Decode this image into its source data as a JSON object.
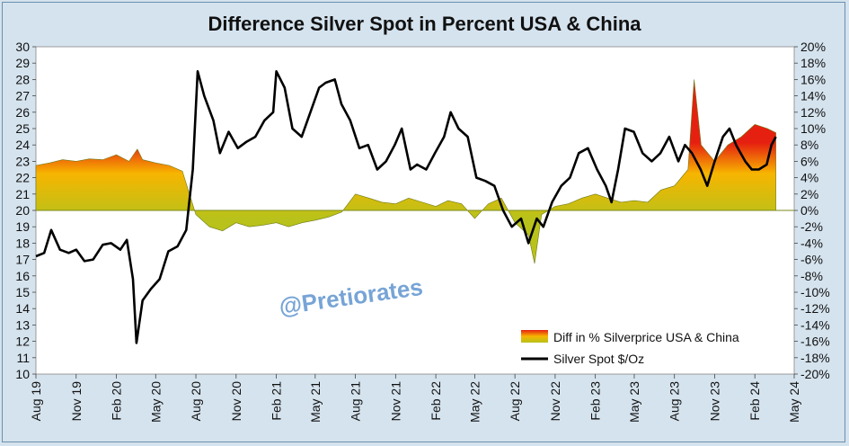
{
  "chart_data": {
    "type": "line",
    "title": "Difference Silver Spot in Percent USA & China",
    "left_axis": {
      "ylim": [
        10,
        30
      ],
      "ticks": [
        10,
        11,
        12,
        13,
        14,
        15,
        16,
        17,
        18,
        19,
        20,
        21,
        22,
        23,
        24,
        25,
        26,
        27,
        28,
        29,
        30
      ]
    },
    "right_axis": {
      "ylim": [
        -20,
        20
      ],
      "ticks": [
        "-20%",
        "-18%",
        "-16%",
        "-14%",
        "-12%",
        "-10%",
        "-8%",
        "-6%",
        "-4%",
        "-2%",
        "0%",
        "2%",
        "4%",
        "6%",
        "8%",
        "10%",
        "12%",
        "14%",
        "16%",
        "18%",
        "20%"
      ]
    },
    "x_axis": {
      "range": [
        "2019-08-01",
        "2024-05-01"
      ],
      "ticks": [
        "Aug 19",
        "Nov 19",
        "Feb 20",
        "May 20",
        "Aug 20",
        "Nov 20",
        "Feb 21",
        "May 21",
        "Aug 21",
        "Nov 21",
        "Feb 22",
        "May 22",
        "Aug 22",
        "Nov 22",
        "Feb 23",
        "May 23",
        "Aug 23",
        "Nov 23",
        "Feb 24",
        "May 24"
      ]
    },
    "grid": false,
    "legend_position": "bottom-right",
    "watermark": "@Pretiorates",
    "series": [
      {
        "name": "Diff in % Silverprice USA & China",
        "axis": "right",
        "style": "area",
        "unit": "%",
        "x": [
          "2019-08-01",
          "2019-09-01",
          "2019-10-01",
          "2019-11-01",
          "2019-12-01",
          "2020-01-01",
          "2020-02-01",
          "2020-03-01",
          "2020-03-20",
          "2020-04-01",
          "2020-05-01",
          "2020-06-01",
          "2020-07-01",
          "2020-08-01",
          "2020-09-01",
          "2020-10-01",
          "2020-11-01",
          "2020-12-01",
          "2021-01-01",
          "2021-02-01",
          "2021-03-01",
          "2021-04-01",
          "2021-05-01",
          "2021-06-01",
          "2021-07-01",
          "2021-08-01",
          "2021-09-01",
          "2021-10-01",
          "2021-11-01",
          "2021-12-01",
          "2022-01-01",
          "2022-02-01",
          "2022-03-01",
          "2022-04-01",
          "2022-05-01",
          "2022-06-01",
          "2022-07-01",
          "2022-08-01",
          "2022-09-01",
          "2022-09-15",
          "2022-10-01",
          "2022-11-01",
          "2022-12-01",
          "2023-01-01",
          "2023-02-01",
          "2023-03-01",
          "2023-04-01",
          "2023-05-01",
          "2023-06-01",
          "2023-07-01",
          "2023-08-01",
          "2023-09-01",
          "2023-09-15",
          "2023-10-01",
          "2023-11-01",
          "2023-12-01",
          "2024-01-01",
          "2024-02-01",
          "2024-03-01",
          "2024-03-20"
        ],
        "values": [
          5.5,
          5.8,
          6.2,
          6.0,
          6.3,
          6.2,
          6.8,
          6.0,
          7.5,
          6.2,
          5.8,
          5.5,
          4.8,
          -0.5,
          -2.0,
          -2.5,
          -1.5,
          -2.0,
          -1.8,
          -1.5,
          -2.0,
          -1.5,
          -1.2,
          -0.8,
          -0.2,
          2.0,
          1.5,
          1.0,
          0.8,
          1.5,
          1.0,
          0.5,
          1.2,
          0.8,
          -1.0,
          0.8,
          1.5,
          -1.5,
          -3.0,
          -6.5,
          -0.5,
          0.5,
          0.8,
          1.5,
          2.0,
          1.5,
          1.0,
          1.2,
          1.0,
          2.5,
          3.0,
          5.0,
          16.0,
          8.0,
          6.0,
          8.0,
          9.0,
          10.5,
          10.0,
          9.5
        ]
      },
      {
        "name": "Silver Spot  $/Oz",
        "axis": "left",
        "style": "line",
        "unit": "$/Oz",
        "x": [
          "2019-08-01",
          "2019-08-20",
          "2019-09-05",
          "2019-09-25",
          "2019-10-15",
          "2019-11-01",
          "2019-11-20",
          "2019-12-10",
          "2020-01-01",
          "2020-01-20",
          "2020-02-10",
          "2020-02-25",
          "2020-03-10",
          "2020-03-18",
          "2020-04-01",
          "2020-04-20",
          "2020-05-10",
          "2020-05-30",
          "2020-06-20",
          "2020-07-10",
          "2020-07-25",
          "2020-08-05",
          "2020-08-20",
          "2020-09-10",
          "2020-09-25",
          "2020-10-15",
          "2020-11-05",
          "2020-11-25",
          "2020-12-15",
          "2021-01-05",
          "2021-01-25",
          "2021-02-01",
          "2021-02-20",
          "2021-03-10",
          "2021-03-31",
          "2021-04-20",
          "2021-05-10",
          "2021-05-25",
          "2021-06-15",
          "2021-06-30",
          "2021-07-20",
          "2021-08-10",
          "2021-08-30",
          "2021-09-20",
          "2021-10-10",
          "2021-10-30",
          "2021-11-15",
          "2021-12-05",
          "2021-12-20",
          "2022-01-10",
          "2022-01-30",
          "2022-02-20",
          "2022-03-07",
          "2022-03-25",
          "2022-04-15",
          "2022-05-05",
          "2022-05-25",
          "2022-06-15",
          "2022-07-05",
          "2022-07-25",
          "2022-08-15",
          "2022-09-01",
          "2022-09-20",
          "2022-10-05",
          "2022-10-25",
          "2022-11-15",
          "2022-12-05",
          "2022-12-25",
          "2023-01-15",
          "2023-02-05",
          "2023-02-25",
          "2023-03-10",
          "2023-03-25",
          "2023-04-10",
          "2023-04-30",
          "2023-05-20",
          "2023-06-10",
          "2023-06-30",
          "2023-07-20",
          "2023-08-10",
          "2023-08-25",
          "2023-09-10",
          "2023-09-30",
          "2023-10-15",
          "2023-11-01",
          "2023-11-20",
          "2023-12-05",
          "2023-12-20",
          "2024-01-10",
          "2024-01-25",
          "2024-02-10",
          "2024-02-28",
          "2024-03-10",
          "2024-03-20"
        ],
        "values": [
          17.2,
          17.4,
          18.8,
          17.6,
          17.4,
          17.6,
          16.9,
          17.0,
          17.9,
          18.0,
          17.6,
          18.2,
          15.8,
          11.9,
          14.5,
          15.2,
          15.8,
          17.5,
          17.8,
          18.8,
          22.5,
          28.5,
          27.0,
          25.5,
          23.5,
          24.8,
          23.8,
          24.2,
          24.5,
          25.5,
          26.0,
          28.5,
          27.5,
          25.0,
          24.5,
          26.0,
          27.5,
          27.8,
          28.0,
          26.5,
          25.5,
          23.8,
          24.0,
          22.5,
          23.0,
          24.0,
          25.0,
          22.5,
          22.8,
          22.5,
          23.5,
          24.5,
          26.0,
          25.0,
          24.5,
          22.0,
          21.8,
          21.5,
          20.0,
          19.0,
          19.5,
          18.0,
          19.5,
          19.0,
          20.5,
          21.5,
          22.0,
          23.5,
          23.8,
          22.5,
          21.5,
          20.5,
          22.5,
          25.0,
          24.8,
          23.5,
          23.0,
          23.5,
          24.5,
          23.0,
          24.0,
          23.5,
          22.5,
          21.5,
          23.0,
          24.5,
          25.0,
          24.0,
          23.0,
          22.5,
          22.5,
          22.8,
          24.0,
          24.5
        ]
      }
    ]
  },
  "legend": {
    "area_label": "Diff in % Silverprice USA & China",
    "line_label": "Silver Spot  $/Oz"
  },
  "colors": {
    "page_bg": "#d5e3ee",
    "plot_bg": "#ffffff",
    "line": "#000000",
    "area_high": "#e62010",
    "area_mid": "#f7b500",
    "area_low": "#b8c21a",
    "area_stroke": "#6e7a18",
    "zero_line": "#7a8a1a",
    "watermark": "#4a86c8"
  }
}
